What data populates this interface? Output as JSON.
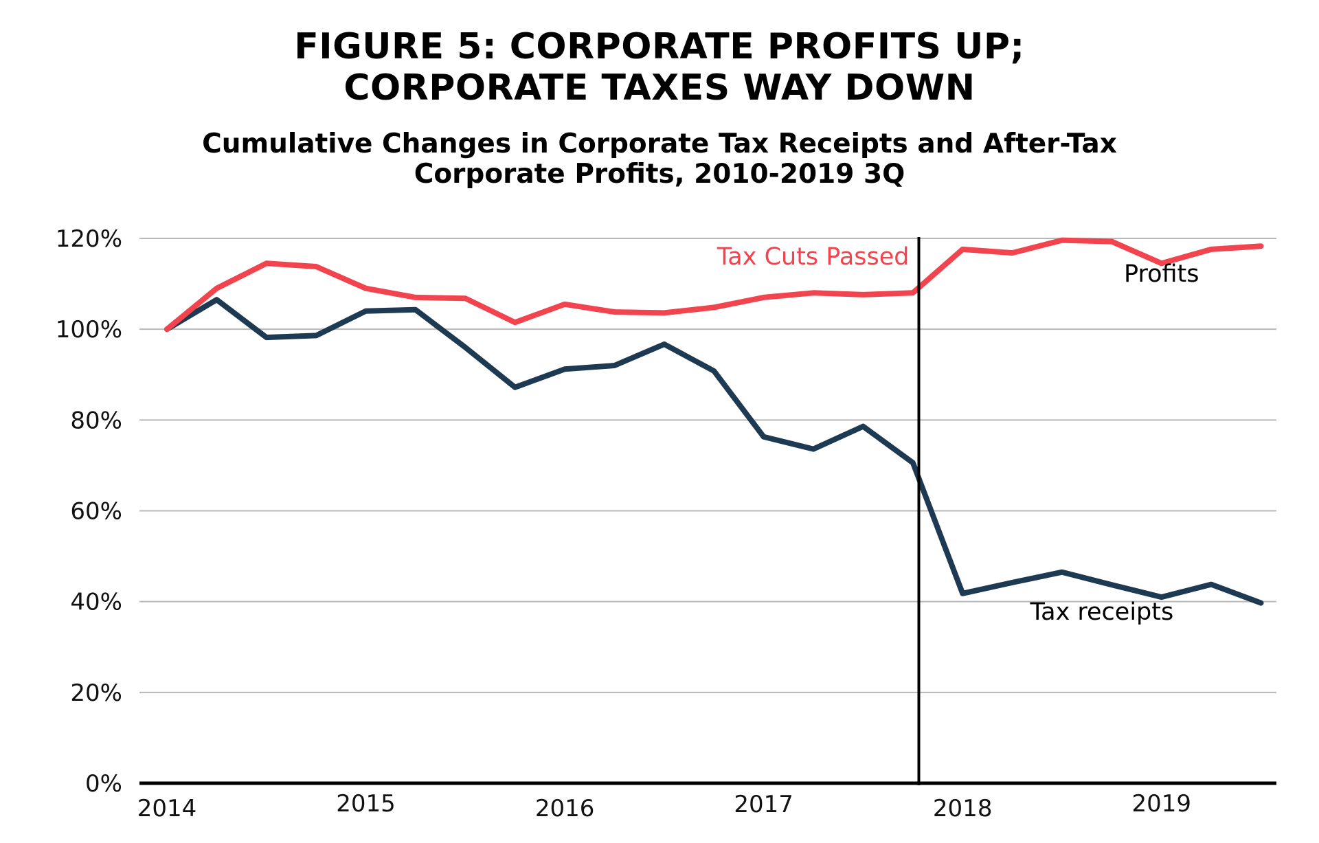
{
  "title": {
    "line1": "FIGURE 5: CORPORATE PROFITS UP;",
    "line2": "CORPORATE TAXES WAY DOWN"
  },
  "subtitle": {
    "line1": "Cumulative Changes in Corporate Tax Receipts and After-Tax",
    "line2": "Corporate Profits, 2010-2019 3Q"
  },
  "colors": {
    "profits": "#f2444e",
    "tax_receipts": "#1e3a52",
    "gridline": "#b8b8b8",
    "axis": "#000000",
    "marker_line": "#000000",
    "annotation_tax_cuts": "#f2444e",
    "annotation_series": "#000000"
  },
  "chart_data": {
    "type": "line",
    "x": [
      2014.0,
      2014.25,
      2014.5,
      2014.75,
      2015.0,
      2015.25,
      2015.5,
      2015.75,
      2016.0,
      2016.25,
      2016.5,
      2016.75,
      2017.0,
      2017.25,
      2017.5,
      2017.75,
      2018.0,
      2018.25,
      2018.5,
      2018.75,
      2019.0,
      2019.25,
      2019.5
    ],
    "series": [
      {
        "name": "Profits",
        "color": "#f2444e",
        "values": [
          100,
          109,
          114.5,
          113.8,
          109,
          107,
          106.8,
          101.5,
          105.5,
          103.8,
          103.6,
          104.8,
          107,
          108,
          107.6,
          108,
          117.6,
          116.8,
          119.6,
          119.3,
          114.5,
          117.6,
          118.3
        ]
      },
      {
        "name": "Tax receipts",
        "color": "#1e3a52",
        "values": [
          100,
          106.5,
          98.2,
          98.6,
          104,
          104.3,
          96,
          87.2,
          91.2,
          92,
          96.7,
          90.8,
          76.3,
          73.6,
          78.6,
          70.6,
          41.8,
          44.2,
          46.5,
          43.7,
          41,
          43.8,
          39.7
        ]
      }
    ],
    "x_ticks": [
      2014,
      2015,
      2016,
      2017,
      2018,
      2019
    ],
    "x_tick_labels": [
      "2014",
      "2015",
      "2016",
      "2017",
      "2018",
      "2019"
    ],
    "y_ticks": [
      0,
      20,
      40,
      60,
      80,
      100,
      120
    ],
    "y_tick_labels": [
      "0%",
      "20%",
      "40%",
      "60%",
      "80%",
      "100%",
      "120%"
    ],
    "ylim": [
      0,
      120
    ],
    "xlim": [
      2014,
      2019.55
    ],
    "grid": true,
    "xlabel": "",
    "ylabel": "",
    "vertical_marker": {
      "x": 2017.78,
      "label": "Tax Cuts Passed"
    },
    "annotations": [
      {
        "text": "Profits",
        "x": 2019.0,
        "y": 110.5,
        "series": "Profits"
      },
      {
        "text": "Tax receipts",
        "x": 2018.7,
        "y": 36,
        "series": "Tax receipts"
      }
    ]
  }
}
